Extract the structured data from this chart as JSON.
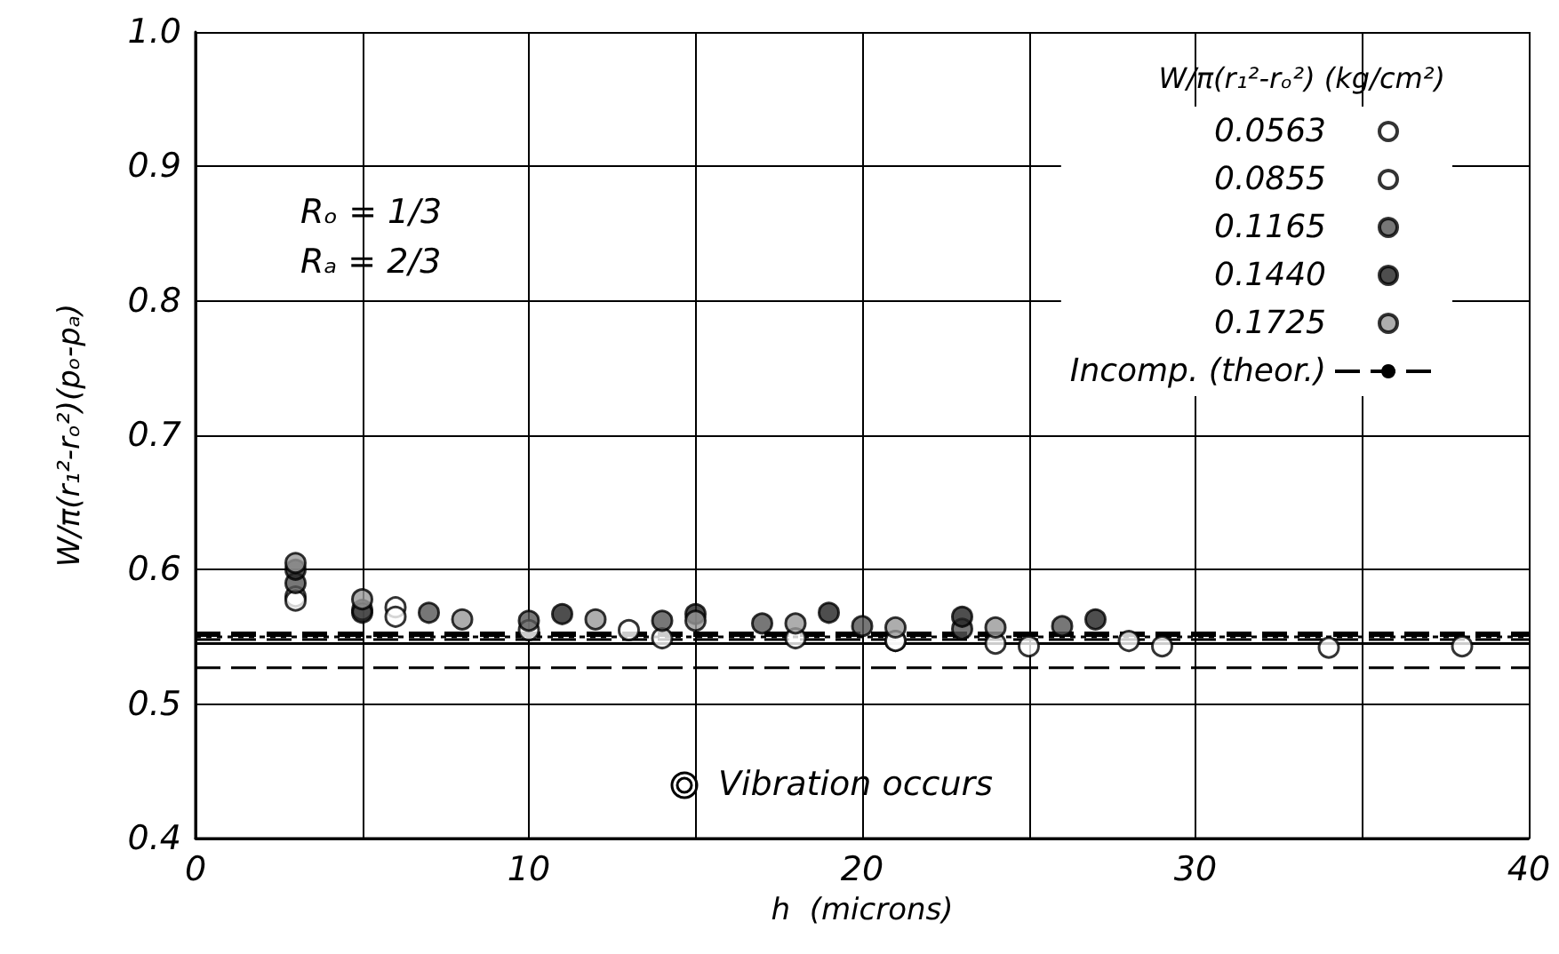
{
  "chart_data": {
    "type": "scatter",
    "xlabel": "h  (microns)",
    "ylabel": "W/π(r₁²-rₒ²)(pₒ-pₐ)",
    "legend_title": "W/π(r₁²-rₒ²) (kg/cm²)",
    "annotations": [
      "Rₒ = 1/3",
      "Rₐ = 2/3",
      "Vibration occurs"
    ],
    "xlim": [
      0,
      40
    ],
    "xticks": [
      0,
      {
        "value": 5,
        "label": null
      },
      10,
      {
        "value": 15,
        "label": null
      },
      20,
      {
        "value": 25,
        "label": null
      },
      30,
      {
        "value": 35,
        "label": null
      },
      40
    ],
    "ylim": [
      0.4,
      1.0
    ],
    "yticks": [
      0.4,
      0.5,
      0.6,
      0.7,
      0.8,
      0.9,
      {
        "value": 1.0,
        "label": "1.0"
      }
    ],
    "grid": true,
    "legend": "top right",
    "marker": "circle",
    "series": [
      {
        "name": "0.0563",
        "color": "#000000",
        "x": [
          3,
          5,
          6,
          10,
          14,
          18,
          21,
          25,
          29,
          34,
          38
        ],
        "values": [
          0.58,
          0.57,
          0.572,
          0.555,
          0.549,
          0.549,
          0.547,
          0.543,
          0.543,
          0.542,
          0.543
        ]
      },
      {
        "name": "0.0855",
        "color": "#000000",
        "x": [
          3,
          6,
          13,
          21,
          24,
          28
        ],
        "values": [
          0.577,
          0.565,
          0.555,
          0.547,
          0.545,
          0.547
        ]
      },
      {
        "name": "0.1165",
        "color": "#000000",
        "x": [
          3,
          7,
          10,
          14,
          17,
          20,
          23,
          26
        ],
        "values": [
          0.59,
          0.568,
          0.562,
          0.562,
          0.56,
          0.558,
          0.556,
          0.558
        ]
      },
      {
        "name": "0.1440",
        "color": "#000000",
        "x": [
          3,
          5,
          11,
          15,
          19,
          23,
          27
        ],
        "values": [
          0.6,
          0.568,
          0.567,
          0.567,
          0.568,
          0.565,
          0.563
        ]
      },
      {
        "name": "0.1725",
        "color": "#000000",
        "x": [
          3,
          5,
          8,
          12,
          15,
          18,
          21,
          24
        ],
        "values": [
          0.605,
          0.578,
          0.563,
          0.563,
          0.562,
          0.56,
          0.557,
          0.557
        ]
      },
      {
        "type": "line",
        "color": "#000000",
        "line_style": "solid",
        "marker": "none",
        "x": [
          0,
          40
        ],
        "values": [
          0.545,
          0.545
        ]
      },
      {
        "type": "line",
        "color": "#000000",
        "line_style": "dashed",
        "marker": "none",
        "x": [
          0,
          40
        ],
        "values": [
          0.548,
          0.548
        ]
      },
      {
        "type": "line",
        "color": "#000000",
        "line_style": "dashed",
        "marker": "none",
        "x": [
          0,
          40
        ],
        "values": [
          0.551,
          0.551
        ]
      },
      {
        "type": "line",
        "color": "#000000",
        "line_style": "dashed",
        "marker": "none",
        "x": [
          0,
          40
        ],
        "values": [
          0.553,
          0.553
        ]
      },
      {
        "type": "line",
        "color": "#000000",
        "line_style": "dotted",
        "marker": "none",
        "x": [
          0,
          40
        ],
        "values": [
          0.55,
          0.55
        ]
      },
      {
        "name": "Incomp. (theor.)",
        "type": "line",
        "color": "#000000",
        "line_style": "dashed",
        "marker": "none",
        "x": [
          0,
          40
        ],
        "values": [
          0.527,
          0.527
        ]
      }
    ]
  }
}
